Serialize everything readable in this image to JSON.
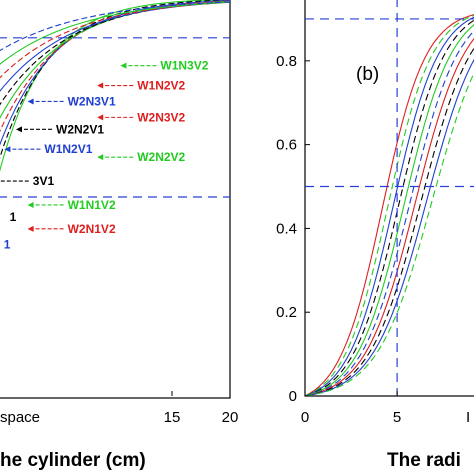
{
  "colors": {
    "green": "#22cc22",
    "blue": "#1f3fd0",
    "red": "#dd1f1f",
    "black": "#000000",
    "guide": "#2a3fd8"
  },
  "chart_data": [
    {
      "type": "line",
      "panel": "a",
      "x_ticks": [
        "15",
        "20"
      ],
      "x_tick_fragment": "space",
      "xlabel_fragment": "he cylinder (cm)",
      "xlim": [
        0,
        20
      ],
      "ylim": [
        0,
        1
      ],
      "guides": {
        "horizontal": [
          0.9,
          0.5
        ]
      },
      "series": [
        {
          "name": "W1N3V2",
          "color": "green",
          "label_y": 0.82,
          "label_x": 14.0
        },
        {
          "name": "W1N2V2",
          "color": "red",
          "label_y": 0.77,
          "label_x": 12.0
        },
        {
          "name": "W2N3V1",
          "color": "blue",
          "label_y": 0.73,
          "label_x": 6.0
        },
        {
          "name": "W2N3V2",
          "color": "red",
          "label_y": 0.69,
          "label_x": 12.0
        },
        {
          "name": "W2N2V1",
          "color": "black",
          "label_y": 0.66,
          "label_x": 5.0
        },
        {
          "name": "W1N2V1",
          "color": "blue",
          "label_y": 0.61,
          "label_x": 4.0
        },
        {
          "name": "W2N2V2",
          "color": "green",
          "label_y": 0.59,
          "label_x": 12.0
        },
        {
          "name": "3V1",
          "color": "black",
          "label_y": 0.53,
          "label_x": 3.0
        },
        {
          "name": "W1N1V2",
          "color": "green",
          "label_y": 0.47,
          "label_x": 6.0
        },
        {
          "name": "1",
          "color": "black",
          "label_y": 0.44,
          "label_x": 1.0
        },
        {
          "name": "W2N1V2",
          "color": "red",
          "label_y": 0.41,
          "label_x": 6.0
        },
        {
          "name": "1",
          "color": "blue",
          "label_y": 0.37,
          "label_x": 0.5
        }
      ]
    },
    {
      "type": "line",
      "panel": "b",
      "panel_label": "(b)",
      "yticks": [
        "0",
        "0.2",
        "0.4",
        "0.6",
        "0.8"
      ],
      "xticks": [
        "0",
        "5"
      ],
      "x_tick_fragment": "I",
      "xlabel_fragment": "The radi",
      "xlim": [
        0,
        9.5
      ],
      "ylim": [
        0,
        0.95
      ],
      "guides": {
        "horizontal": [
          0.9,
          0.5
        ],
        "vertical": [
          5
        ]
      }
    }
  ]
}
